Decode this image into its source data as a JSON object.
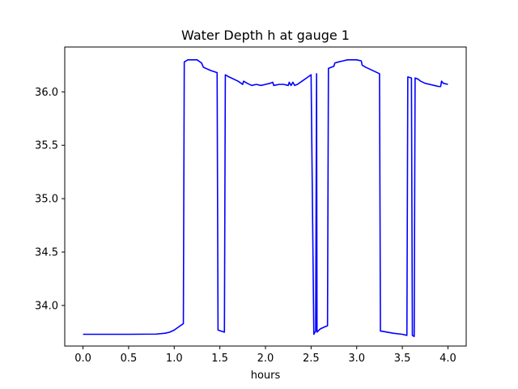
{
  "chart_data": {
    "type": "line",
    "title": "Water Depth h at gauge 1",
    "xlabel": "hours",
    "ylabel": "",
    "xlim": [
      -0.2,
      4.2
    ],
    "ylim": [
      33.62,
      36.42
    ],
    "xticks": [
      "0.0",
      "0.5",
      "1.0",
      "1.5",
      "2.0",
      "2.5",
      "3.0",
      "3.5",
      "4.0"
    ],
    "yticks": [
      "34.0",
      "34.5",
      "35.0",
      "35.5",
      "36.0"
    ],
    "grid": false,
    "line_color": "#0000ff",
    "series": [
      {
        "x": [
          0.0,
          0.5,
          0.8,
          0.9,
          0.95,
          1.0,
          1.05,
          1.1,
          1.11,
          1.15,
          1.2,
          1.25,
          1.3,
          1.32,
          1.4,
          1.47,
          1.48,
          1.55,
          1.56,
          1.6,
          1.7,
          1.75,
          1.76,
          1.8,
          1.85,
          1.9,
          1.95,
          2.0,
          2.05,
          2.08,
          2.09,
          2.15,
          2.2,
          2.25,
          2.26,
          2.28,
          2.3,
          2.32,
          2.35,
          2.4,
          2.45,
          2.5,
          2.53,
          2.535,
          2.55,
          2.56,
          2.565,
          2.6,
          2.65,
          2.68,
          2.69,
          2.75,
          2.76,
          2.8,
          2.85,
          2.9,
          2.95,
          3.0,
          3.05,
          3.06,
          3.1,
          3.15,
          3.2,
          3.25,
          3.26,
          3.27,
          3.4,
          3.5,
          3.55,
          3.56,
          3.6,
          3.61,
          3.63,
          3.64,
          3.67,
          3.7,
          3.75,
          3.8,
          3.85,
          3.9,
          3.92,
          3.93,
          3.95,
          4.0
        ],
        "y": [
          33.73,
          33.73,
          33.732,
          33.74,
          33.75,
          33.77,
          33.8,
          33.83,
          36.28,
          36.3,
          36.3,
          36.3,
          36.27,
          36.23,
          36.2,
          36.18,
          33.77,
          33.75,
          36.16,
          36.14,
          36.1,
          36.07,
          36.1,
          36.08,
          36.06,
          36.07,
          36.06,
          36.07,
          36.08,
          36.09,
          36.06,
          36.07,
          36.07,
          36.06,
          36.09,
          36.06,
          36.09,
          36.06,
          36.07,
          36.1,
          36.13,
          36.16,
          33.73,
          33.74,
          33.76,
          36.17,
          33.75,
          33.78,
          33.8,
          33.81,
          36.22,
          36.24,
          36.27,
          36.28,
          36.29,
          36.3,
          36.3,
          36.3,
          36.29,
          36.25,
          36.23,
          36.21,
          36.19,
          36.17,
          33.76,
          33.76,
          33.74,
          33.73,
          33.72,
          36.14,
          36.13,
          33.72,
          33.71,
          36.13,
          36.12,
          36.1,
          36.08,
          36.07,
          36.06,
          36.05,
          36.05,
          36.1,
          36.08,
          36.07
        ]
      }
    ]
  }
}
